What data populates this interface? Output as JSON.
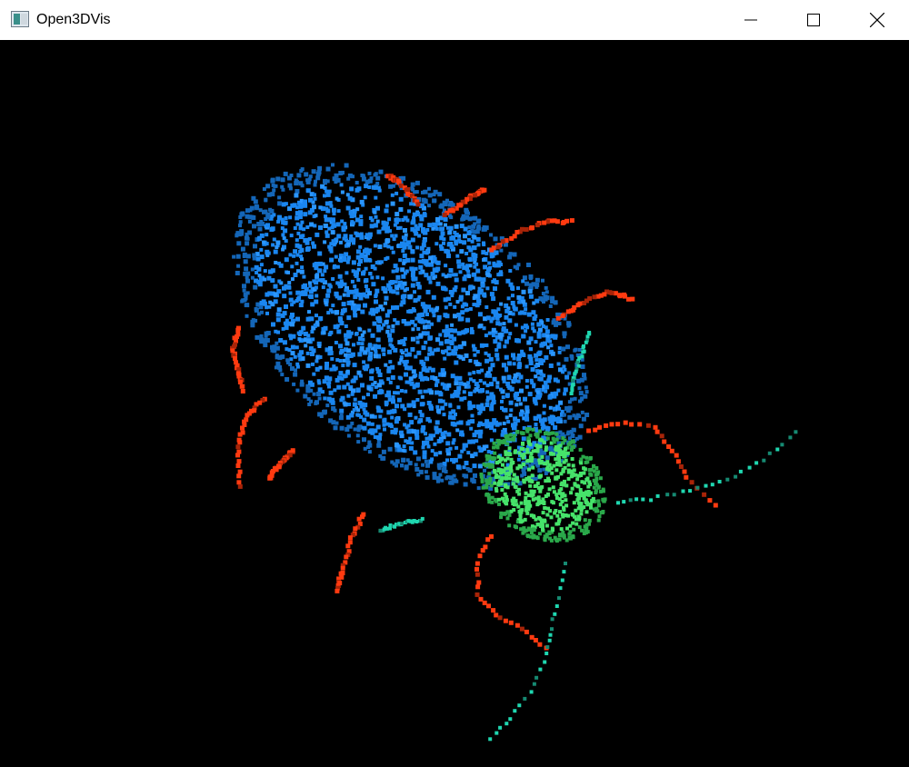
{
  "window": {
    "title": "Open3DVis",
    "icon": "app-window-icon",
    "controls": {
      "minimize_icon": "minimize-icon",
      "maximize_icon": "maximize-icon",
      "close_icon": "close-icon"
    }
  },
  "viewport": {
    "background": "#000000",
    "colors": {
      "body": "#1a86f0",
      "body_shade": "#1466b8",
      "head": "#46e36a",
      "head_shade": "#2aa84a",
      "legs": "#ff3a10",
      "legs_shade": "#a82408",
      "antennae": "#1fd7b0",
      "antennae_shade": "#168a72"
    }
  }
}
